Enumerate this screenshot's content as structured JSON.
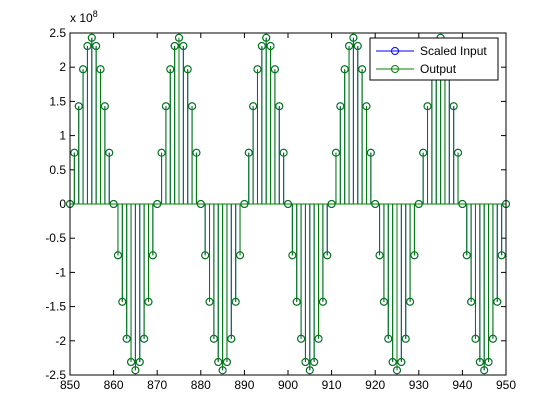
{
  "chart_data": {
    "type": "stem",
    "annotation": {
      "base": "x 10",
      "exponent": "8"
    },
    "x": [
      850,
      851,
      852,
      853,
      854,
      855,
      856,
      857,
      858,
      859,
      860,
      861,
      862,
      863,
      864,
      865,
      866,
      867,
      868,
      869,
      870,
      871,
      872,
      873,
      874,
      875,
      876,
      877,
      878,
      879,
      880,
      881,
      882,
      883,
      884,
      885,
      886,
      887,
      888,
      889,
      890,
      891,
      892,
      893,
      894,
      895,
      896,
      897,
      898,
      899,
      900,
      901,
      902,
      903,
      904,
      905,
      906,
      907,
      908,
      909,
      910,
      911,
      912,
      913,
      914,
      915,
      916,
      917,
      918,
      919,
      920,
      921,
      922,
      923,
      924,
      925,
      926,
      927,
      928,
      929,
      930,
      931,
      932,
      933,
      934,
      935,
      936,
      937,
      938,
      939,
      940,
      941,
      942,
      943,
      944,
      945,
      946,
      947,
      948,
      949,
      950
    ],
    "series": [
      {
        "name": "Scaled Input",
        "color": "#0000ff",
        "values": [
          0,
          0.75,
          1.43,
          1.97,
          2.31,
          2.43,
          2.31,
          1.97,
          1.43,
          0.75,
          0,
          -0.75,
          -1.43,
          -1.97,
          -2.31,
          -2.43,
          -2.31,
          -1.97,
          -1.43,
          -0.75,
          0,
          0.75,
          1.43,
          1.97,
          2.31,
          2.43,
          2.31,
          1.97,
          1.43,
          0.75,
          0,
          -0.75,
          -1.43,
          -1.97,
          -2.31,
          -2.43,
          -2.31,
          -1.97,
          -1.43,
          -0.75,
          0,
          0.75,
          1.43,
          1.97,
          2.31,
          2.43,
          2.31,
          1.97,
          1.43,
          0.75,
          0,
          -0.75,
          -1.43,
          -1.97,
          -2.31,
          -2.43,
          -2.31,
          -1.97,
          -1.43,
          -0.75,
          0,
          0.75,
          1.43,
          1.97,
          2.31,
          2.43,
          2.31,
          1.97,
          1.43,
          0.75,
          0,
          -0.75,
          -1.43,
          -1.97,
          -2.31,
          -2.43,
          -2.31,
          -1.97,
          -1.43,
          -0.75,
          0,
          0.75,
          1.43,
          1.97,
          2.31,
          2.43,
          2.31,
          1.97,
          1.43,
          0.75,
          0,
          -0.75,
          -1.43,
          -1.97,
          -2.31,
          -2.43,
          -2.31,
          -1.97,
          -1.43,
          -0.75,
          0
        ]
      },
      {
        "name": "Output",
        "color": "#008000",
        "values": [
          0,
          0.75,
          1.43,
          1.97,
          2.31,
          2.43,
          2.31,
          1.97,
          1.43,
          0.75,
          0,
          -0.75,
          -1.43,
          -1.97,
          -2.31,
          -2.43,
          -2.31,
          -1.97,
          -1.43,
          -0.75,
          0,
          0.75,
          1.43,
          1.97,
          2.31,
          2.43,
          2.31,
          1.97,
          1.43,
          0.75,
          0,
          -0.75,
          -1.43,
          -1.97,
          -2.31,
          -2.43,
          -2.31,
          -1.97,
          -1.43,
          -0.75,
          0,
          0.75,
          1.43,
          1.97,
          2.31,
          2.43,
          2.31,
          1.97,
          1.43,
          0.75,
          0,
          -0.75,
          -1.43,
          -1.97,
          -2.31,
          -2.43,
          -2.31,
          -1.97,
          -1.43,
          -0.75,
          0,
          0.75,
          1.43,
          1.97,
          2.31,
          2.43,
          2.31,
          1.97,
          1.43,
          0.75,
          0,
          -0.75,
          -1.43,
          -1.97,
          -2.31,
          -2.43,
          -2.31,
          -1.97,
          -1.43,
          -0.75,
          0,
          0.75,
          1.43,
          1.97,
          2.31,
          2.43,
          2.31,
          1.97,
          1.43,
          0.75,
          0,
          -0.75,
          -1.43,
          -1.97,
          -2.31,
          -2.43,
          -2.31,
          -1.97,
          -1.43,
          -0.75,
          0
        ]
      }
    ],
    "xlim": [
      850,
      950
    ],
    "xticks": [
      850,
      860,
      870,
      880,
      890,
      900,
      910,
      920,
      930,
      940,
      950
    ],
    "ylim": [
      -2.5,
      2.5
    ],
    "yticks": [
      -2.5,
      -2,
      -1.5,
      -1,
      -0.5,
      0,
      0.5,
      1,
      1.5,
      2,
      2.5
    ],
    "grid": false,
    "legend": "northeast"
  }
}
